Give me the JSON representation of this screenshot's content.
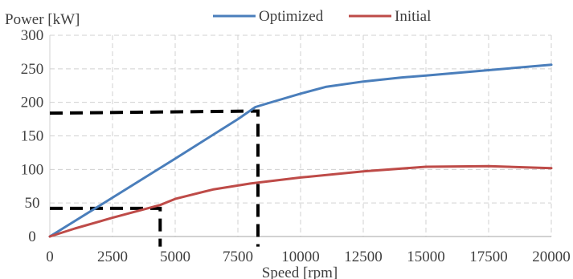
{
  "chart_data": {
    "type": "line",
    "ylabel": "Power [kW]",
    "xlabel": "Speed [rpm]",
    "xlim": [
      0,
      20000
    ],
    "ylim": [
      0,
      300
    ],
    "xticks": [
      0,
      2500,
      5000,
      7500,
      10000,
      12500,
      15000,
      17500,
      20000
    ],
    "yticks": [
      0,
      50,
      100,
      150,
      200,
      250,
      300
    ],
    "grid": "dashed",
    "legend": "top-center",
    "series": [
      {
        "name": "Optimized",
        "color": "#4a7ebb",
        "x": [
          0,
          2500,
          5000,
          7500,
          8200,
          9000,
          10000,
          11000,
          12500,
          14000,
          15000,
          17500,
          20000
        ],
        "y": [
          0,
          58,
          116,
          175,
          193,
          202,
          213,
          223,
          231,
          237,
          240,
          248,
          256
        ]
      },
      {
        "name": "Initial",
        "color": "#be4b48",
        "x": [
          0,
          1000,
          2500,
          4400,
          5000,
          6500,
          8000,
          10000,
          12500,
          15000,
          17500,
          20000
        ],
        "y": [
          0,
          12,
          28,
          47,
          56,
          70,
          79,
          88,
          97,
          104,
          105,
          102
        ]
      }
    ],
    "annotations": [
      {
        "type": "dashed-guide",
        "color": "#000000",
        "points": [
          [
            0,
            184
          ],
          [
            8300,
            187
          ],
          [
            8300,
            -15
          ]
        ]
      },
      {
        "type": "dashed-guide",
        "color": "#000000",
        "points": [
          [
            0,
            42
          ],
          [
            4400,
            42
          ],
          [
            4400,
            -15
          ]
        ]
      }
    ]
  }
}
